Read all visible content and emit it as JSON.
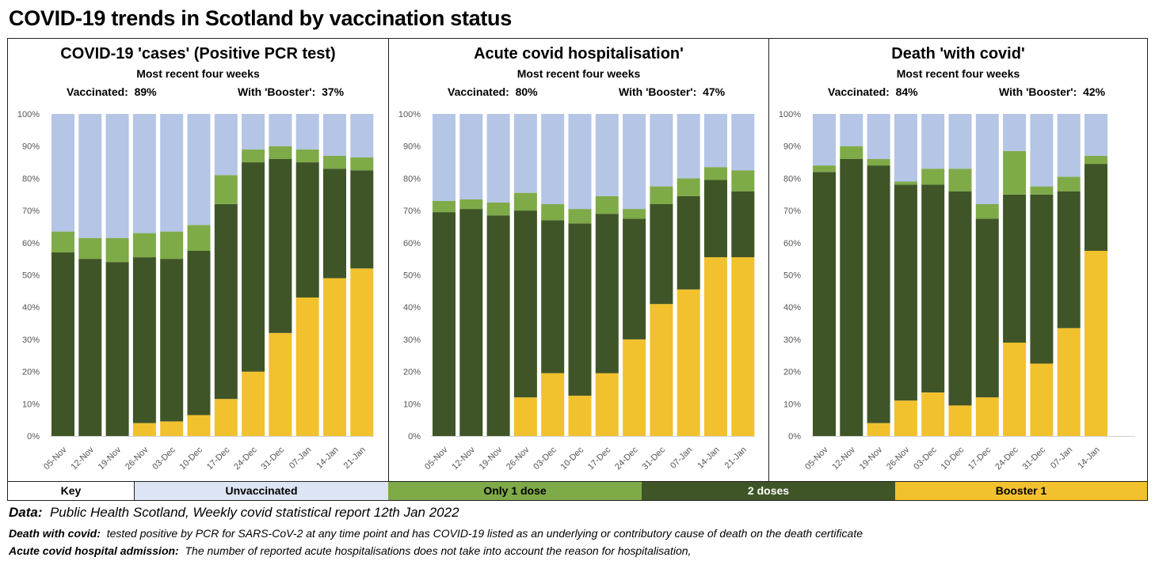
{
  "title": "COVID-19 trends in Scotland by vaccination status",
  "colors": {
    "unvaccinated": "#b4c5e6",
    "one_dose": "#7faa48",
    "two_doses": "#3f5527",
    "booster": "#f2c12e"
  },
  "chart_data": [
    {
      "type": "bar",
      "stacked": true,
      "title": "COVID-19 'cases' (Positive PCR test)",
      "subtitle": "Most recent four weeks",
      "vaccinated_label": "Vaccinated:",
      "vaccinated_value": "89%",
      "booster_label": "With 'Booster':",
      "booster_value": "37%",
      "categories": [
        "05-Nov",
        "12-Nov",
        "19-Nov",
        "26-Nov",
        "03-Dec",
        "10-Dec",
        "17-Dec",
        "24-Dec",
        "31-Dec",
        "07-Jan",
        "14-Jan",
        "21-Jan"
      ],
      "series": [
        {
          "name": "Booster 1",
          "values": [
            0,
            0,
            0,
            4,
            4.5,
            6.5,
            11.5,
            20,
            32,
            43,
            49,
            52
          ]
        },
        {
          "name": "2 doses",
          "values": [
            57,
            55,
            54,
            51.5,
            50.5,
            51,
            60.5,
            65,
            54,
            42,
            34,
            30.5
          ]
        },
        {
          "name": "Only 1 dose",
          "values": [
            6.5,
            6.5,
            7.5,
            7.5,
            8.5,
            8,
            9,
            4,
            4,
            4,
            4,
            4
          ]
        },
        {
          "name": "Unvaccinated",
          "values": [
            36.5,
            38.5,
            38.5,
            37,
            36.5,
            34.5,
            19,
            11,
            10,
            11,
            13,
            13.5
          ]
        }
      ],
      "ylim": [
        0,
        100
      ],
      "yticks": [
        "0%",
        "10%",
        "20%",
        "30%",
        "40%",
        "50%",
        "60%",
        "70%",
        "80%",
        "90%",
        "100%"
      ]
    },
    {
      "type": "bar",
      "stacked": true,
      "title": "Acute covid hospitalisation'",
      "subtitle": "Most recent four weeks",
      "vaccinated_label": "Vaccinated:",
      "vaccinated_value": "80%",
      "booster_label": "With 'Booster':",
      "booster_value": "47%",
      "categories": [
        "05-Nov",
        "12-Nov",
        "19-Nov",
        "26-Nov",
        "03-Dec",
        "10-Dec",
        "17-Dec",
        "24-Dec",
        "31-Dec",
        "07-Jan",
        "14-Jan",
        "21-Jan"
      ],
      "series": [
        {
          "name": "Booster 1",
          "values": [
            0,
            0,
            0,
            12,
            19.5,
            12.5,
            19.5,
            30,
            41,
            45.5,
            55.5,
            55.5
          ]
        },
        {
          "name": "2 doses",
          "values": [
            69.5,
            70.5,
            68.5,
            58,
            47.5,
            53.5,
            49.5,
            37.5,
            31,
            29,
            24,
            20.5
          ]
        },
        {
          "name": "Only 1 dose",
          "values": [
            3.5,
            3,
            4,
            5.5,
            5,
            4.5,
            5.5,
            3,
            5.5,
            5.5,
            4,
            6.5
          ]
        },
        {
          "name": "Unvaccinated",
          "values": [
            27,
            26.5,
            27.5,
            24.5,
            28,
            29.5,
            25.5,
            29.5,
            22.5,
            20,
            16.5,
            17.5
          ]
        }
      ],
      "ylim": [
        0,
        100
      ],
      "yticks": [
        "0%",
        "10%",
        "20%",
        "30%",
        "40%",
        "50%",
        "60%",
        "70%",
        "80%",
        "90%",
        "100%"
      ]
    },
    {
      "type": "bar",
      "stacked": true,
      "title": "Death 'with covid'",
      "subtitle": "Most recent four weeks",
      "vaccinated_label": "Vaccinated:",
      "vaccinated_value": "84%",
      "booster_label": "With 'Booster':",
      "booster_value": "42%",
      "categories": [
        "05-Nov",
        "12-Nov",
        "19-Nov",
        "26-Nov",
        "03-Dec",
        "10-Dec",
        "17-Dec",
        "24-Dec",
        "31-Dec",
        "07-Jan",
        "14-Jan"
      ],
      "series": [
        {
          "name": "Booster 1",
          "values": [
            0,
            0,
            4,
            11,
            13.5,
            9.5,
            12,
            29,
            22.5,
            33.5,
            57.5
          ]
        },
        {
          "name": "2 doses",
          "values": [
            82,
            86,
            80,
            67,
            64.5,
            66.5,
            55.5,
            46,
            52.5,
            42.5,
            27
          ]
        },
        {
          "name": "Only 1 dose",
          "values": [
            2,
            4,
            2,
            1,
            5,
            7,
            4.5,
            13.5,
            2.5,
            4.5,
            2.5
          ]
        },
        {
          "name": "Unvaccinated",
          "values": [
            16,
            10,
            14,
            21,
            17,
            17,
            28,
            11.5,
            22.5,
            19.5,
            13
          ]
        }
      ],
      "ylim": [
        0,
        100
      ],
      "yticks": [
        "0%",
        "10%",
        "20%",
        "30%",
        "40%",
        "50%",
        "60%",
        "70%",
        "80%",
        "90%",
        "100%"
      ]
    }
  ],
  "key": {
    "key_label": "Key",
    "unvaccinated": "Unvaccinated",
    "one_dose": "Only 1 dose",
    "two_doses": "2 doses",
    "booster": "Booster 1"
  },
  "footer": {
    "data_label": "Data:",
    "data_text": "Public Health Scotland, Weekly covid statistical report 12th Jan 2022",
    "death_label": "Death with covid:",
    "death_text": "tested positive by PCR for SARS-CoV-2 at any time point and has COVID-19 listed as an underlying or contributory cause of death on the death certificate",
    "hosp_label": "Acute covid hospital admission:",
    "hosp_text": "The number of reported acute hospitalisations does not take into account the reason for hospitalisation,"
  }
}
